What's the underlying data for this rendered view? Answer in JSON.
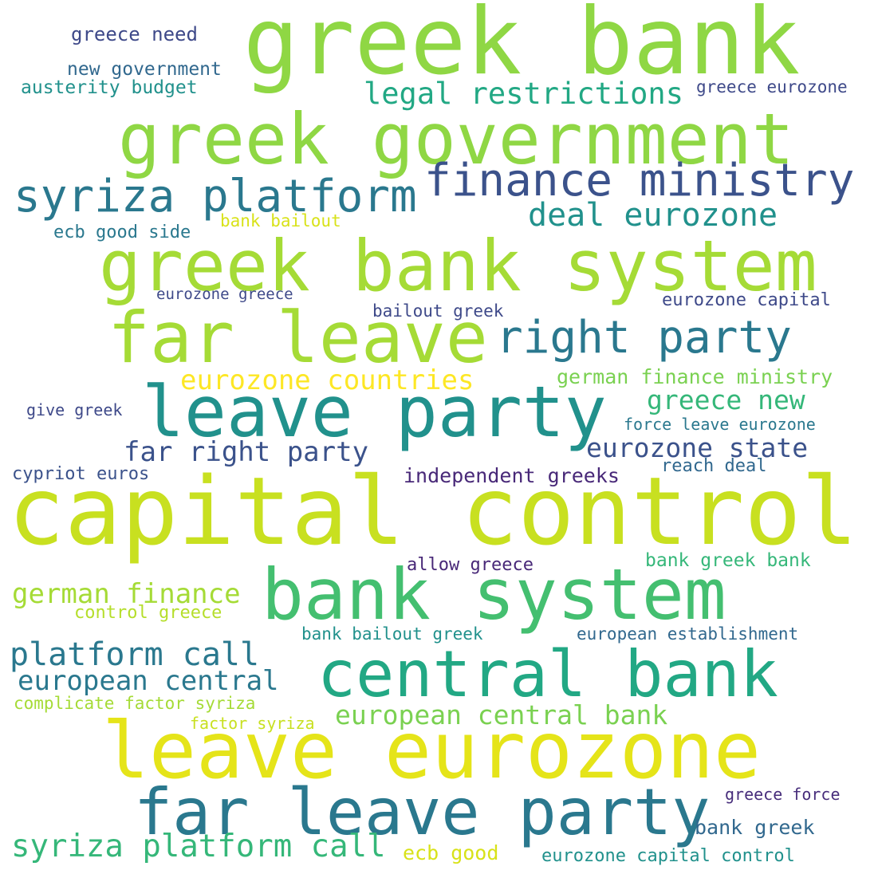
{
  "words": [
    {
      "text": "greek bank",
      "color": "#8fd744"
    },
    {
      "text": "greek government",
      "color": "#8fd744"
    },
    {
      "text": "greek bank system",
      "color": "#a5db36"
    },
    {
      "text": "far leave",
      "color": "#a5db36"
    },
    {
      "text": "capital control",
      "color": "#c8e020"
    },
    {
      "text": "leave party",
      "color": "#21918c"
    },
    {
      "text": "bank system",
      "color": "#44bf70"
    },
    {
      "text": "central bank",
      "color": "#22a884"
    },
    {
      "text": "leave eurozone",
      "color": "#e5e419"
    },
    {
      "text": "far leave party",
      "color": "#2a788e"
    },
    {
      "text": "syriza platform",
      "color": "#2a788e"
    },
    {
      "text": "finance ministry",
      "color": "#3b528b"
    },
    {
      "text": "right party",
      "color": "#2a788e"
    },
    {
      "text": "deal eurozone",
      "color": "#21918c"
    },
    {
      "text": "legal restrictions",
      "color": "#22a884"
    },
    {
      "text": "greece need",
      "color": "#3e4989"
    },
    {
      "text": "new government",
      "color": "#31688e"
    },
    {
      "text": "austerity budget",
      "color": "#21918c"
    },
    {
      "text": "greece eurozone",
      "color": "#3e4989"
    },
    {
      "text": "bank bailout",
      "color": "#d8e219"
    },
    {
      "text": "ecb good side",
      "color": "#2a788e"
    },
    {
      "text": "eurozone greece",
      "color": "#3e4989"
    },
    {
      "text": "bailout greek",
      "color": "#3e4989"
    },
    {
      "text": "eurozone capital",
      "color": "#3e4989"
    },
    {
      "text": "eurozone countries",
      "color": "#fde725"
    },
    {
      "text": "german finance ministry",
      "color": "#7ad151"
    },
    {
      "text": "greece new",
      "color": "#35b779"
    },
    {
      "text": "give greek",
      "color": "#3e4989"
    },
    {
      "text": "force leave eurozone",
      "color": "#2a788e"
    },
    {
      "text": "far right party",
      "color": "#3b528b"
    },
    {
      "text": "eurozone state",
      "color": "#3b528b"
    },
    {
      "text": "cypriot euros",
      "color": "#3b528b"
    },
    {
      "text": "independent greeks",
      "color": "#482878"
    },
    {
      "text": "reach deal",
      "color": "#31688e"
    },
    {
      "text": "allow greece",
      "color": "#482878"
    },
    {
      "text": "bank greek bank",
      "color": "#35b779"
    },
    {
      "text": "german finance",
      "color": "#a5db36"
    },
    {
      "text": "control greece",
      "color": "#b5de2b"
    },
    {
      "text": "bank bailout greek",
      "color": "#21918c"
    },
    {
      "text": "european establishment",
      "color": "#31688e"
    },
    {
      "text": "platform call",
      "color": "#2a788e"
    },
    {
      "text": "european central",
      "color": "#2a788e"
    },
    {
      "text": "complicate factor syriza",
      "color": "#a5db36"
    },
    {
      "text": "european central bank",
      "color": "#7ad151"
    },
    {
      "text": "factor syriza",
      "color": "#c8e020"
    },
    {
      "text": "greece force",
      "color": "#472d7b"
    },
    {
      "text": "bank greek",
      "color": "#31688e"
    },
    {
      "text": "syriza platform call",
      "color": "#35b779"
    },
    {
      "text": "ecb good",
      "color": "#d8e219"
    },
    {
      "text": "eurozone capital control",
      "color": "#21918c"
    }
  ]
}
